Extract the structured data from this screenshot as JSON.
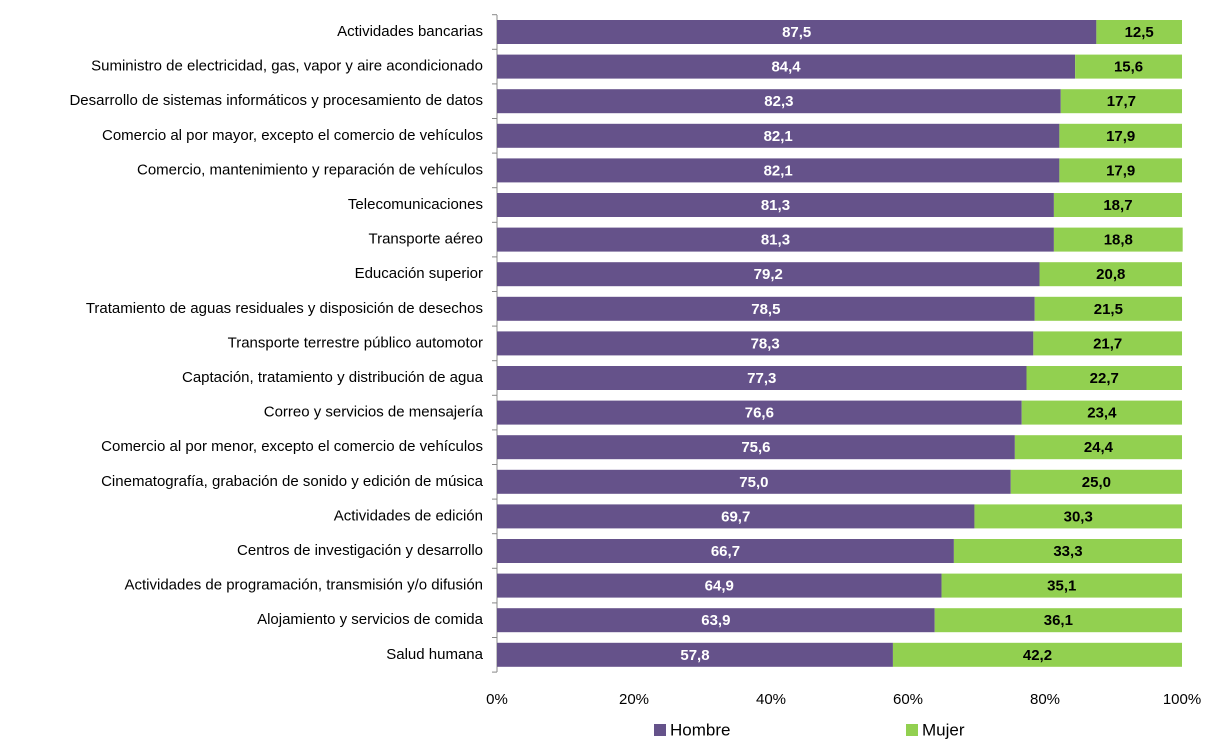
{
  "chart_data": {
    "type": "stacked_bar_horizontal",
    "categories": [
      "Actividades bancarias",
      "Suministro de electricidad, gas, vapor y aire acondicionado",
      "Desarrollo de sistemas informáticos y procesamiento de datos",
      "Comercio al por mayor, excepto el comercio de vehículos",
      "Comercio, mantenimiento y reparación de vehículos",
      "Telecomunicaciones",
      "Transporte aéreo",
      "Educación superior",
      "Tratamiento de aguas residuales y disposición de desechos",
      "Transporte terrestre público automotor",
      "Captación, tratamiento y distribución de agua",
      "Correo y servicios de mensajería",
      "Comercio al por menor, excepto el comercio de vehículos",
      "Cinematografía, grabación de sonido y edición de música",
      "Actividades de edición",
      "Centros de investigación y desarrollo",
      "Actividades de programación, transmisión y/o difusión",
      "Alojamiento y servicios de comida",
      "Salud humana"
    ],
    "series": [
      {
        "name": "Hombre",
        "color": "#65528a",
        "label_color": "#ffffff",
        "values": [
          87.5,
          84.4,
          82.3,
          82.1,
          82.1,
          81.3,
          81.3,
          79.2,
          78.5,
          78.3,
          77.3,
          76.6,
          75.6,
          75.0,
          69.7,
          66.7,
          64.9,
          63.9,
          57.8
        ],
        "value_labels": [
          "87,5",
          "84,4",
          "82,3",
          "82,1",
          "82,1",
          "81,3",
          "81,3",
          "79,2",
          "78,5",
          "78,3",
          "77,3",
          "76,6",
          "75,6",
          "75,0",
          "69,7",
          "66,7",
          "64,9",
          "63,9",
          "57,8"
        ]
      },
      {
        "name": "Mujer",
        "color": "#92d050",
        "label_color": "#000000",
        "values": [
          12.5,
          15.6,
          17.7,
          17.9,
          17.9,
          18.7,
          18.8,
          20.8,
          21.5,
          21.7,
          22.7,
          23.4,
          24.4,
          25.0,
          30.3,
          33.3,
          35.1,
          36.1,
          42.2
        ],
        "value_labels": [
          "12,5",
          "15,6",
          "17,7",
          "17,9",
          "17,9",
          "18,7",
          "18,8",
          "20,8",
          "21,5",
          "21,7",
          "22,7",
          "23,4",
          "24,4",
          "25,0",
          "30,3",
          "33,3",
          "35,1",
          "36,1",
          "42,2"
        ]
      }
    ],
    "xlim": [
      0,
      100
    ],
    "xticks": [
      {
        "value": 0,
        "label": "0%"
      },
      {
        "value": 20,
        "label": "20%"
      },
      {
        "value": 40,
        "label": "40%"
      },
      {
        "value": 60,
        "label": "60%"
      },
      {
        "value": 80,
        "label": "80%"
      },
      {
        "value": 100,
        "label": "100%"
      }
    ],
    "legend": "bottom"
  }
}
